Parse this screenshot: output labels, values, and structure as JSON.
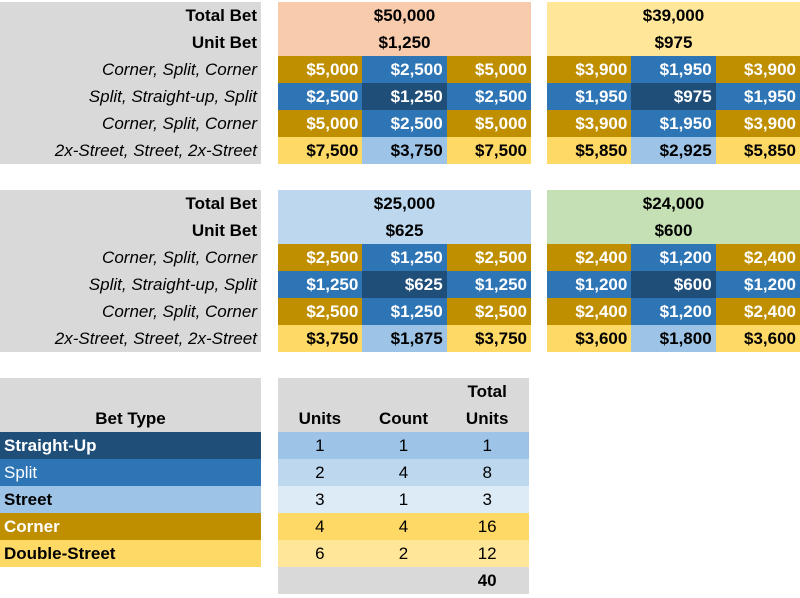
{
  "row_labels": {
    "total_bet": "Total Bet",
    "unit_bet": "Unit Bet",
    "rows": [
      "Corner, Split, Corner",
      "Split, Straight-up, Split",
      "Corner, Split, Corner",
      "2x-Street, Street, 2x-Street"
    ]
  },
  "panels": [
    {
      "total": "$50,000",
      "unit": "$1,250",
      "header_color": "#f8cbad",
      "grid": [
        [
          "$5,000",
          "$2,500",
          "$5,000"
        ],
        [
          "$2,500",
          "$1,250",
          "$2,500"
        ],
        [
          "$5,000",
          "$2,500",
          "$5,000"
        ],
        [
          "$7,500",
          "$3,750",
          "$7,500"
        ]
      ]
    },
    {
      "total": "$39,000",
      "unit": "$975",
      "header_color": "#ffe699",
      "grid": [
        [
          "$3,900",
          "$1,950",
          "$3,900"
        ],
        [
          "$1,950",
          "$975",
          "$1,950"
        ],
        [
          "$3,900",
          "$1,950",
          "$3,900"
        ],
        [
          "$5,850",
          "$2,925",
          "$5,850"
        ]
      ]
    },
    {
      "total": "$25,000",
      "unit": "$625",
      "header_color": "#bdd7ee",
      "grid": [
        [
          "$2,500",
          "$1,250",
          "$2,500"
        ],
        [
          "$1,250",
          "$625",
          "$1,250"
        ],
        [
          "$2,500",
          "$1,250",
          "$2,500"
        ],
        [
          "$3,750",
          "$1,875",
          "$3,750"
        ]
      ]
    },
    {
      "total": "$24,000",
      "unit": "$600",
      "header_color": "#c5e0b4",
      "grid": [
        [
          "$2,400",
          "$1,200",
          "$2,400"
        ],
        [
          "$1,200",
          "$600",
          "$1,200"
        ],
        [
          "$2,400",
          "$1,200",
          "$2,400"
        ],
        [
          "$3,600",
          "$1,800",
          "$3,600"
        ]
      ]
    }
  ],
  "bet_table": {
    "headers": {
      "bet_type": "Bet Type",
      "units": "Units",
      "count": "Count",
      "total_1": "Total",
      "total_2": "Units"
    },
    "rows": [
      {
        "type": "Straight-Up",
        "units": "1",
        "count": "1",
        "total": "1",
        "label_bg": "#1f4e79",
        "label_fg": "#ffffff",
        "val_bg": "#9dc3e6"
      },
      {
        "type": "Split",
        "units": "2",
        "count": "4",
        "total": "8",
        "label_bg": "#2e75b6",
        "label_fg": "#ffffff",
        "val_bg": "#bdd7ee"
      },
      {
        "type": "Street",
        "units": "3",
        "count": "1",
        "total": "3",
        "label_bg": "#9dc3e6",
        "label_fg": "#000000",
        "val_bg": "#ddebf7"
      },
      {
        "type": "Corner",
        "units": "4",
        "count": "4",
        "total": "16",
        "label_bg": "#bf8f00",
        "label_fg": "#ffffff",
        "val_bg": "#ffd966"
      },
      {
        "type": "Double-Street",
        "units": "6",
        "count": "2",
        "total": "12",
        "label_bg": "#ffd966",
        "label_fg": "#000000",
        "val_bg": "#ffe699"
      }
    ],
    "grand_total": "40"
  }
}
